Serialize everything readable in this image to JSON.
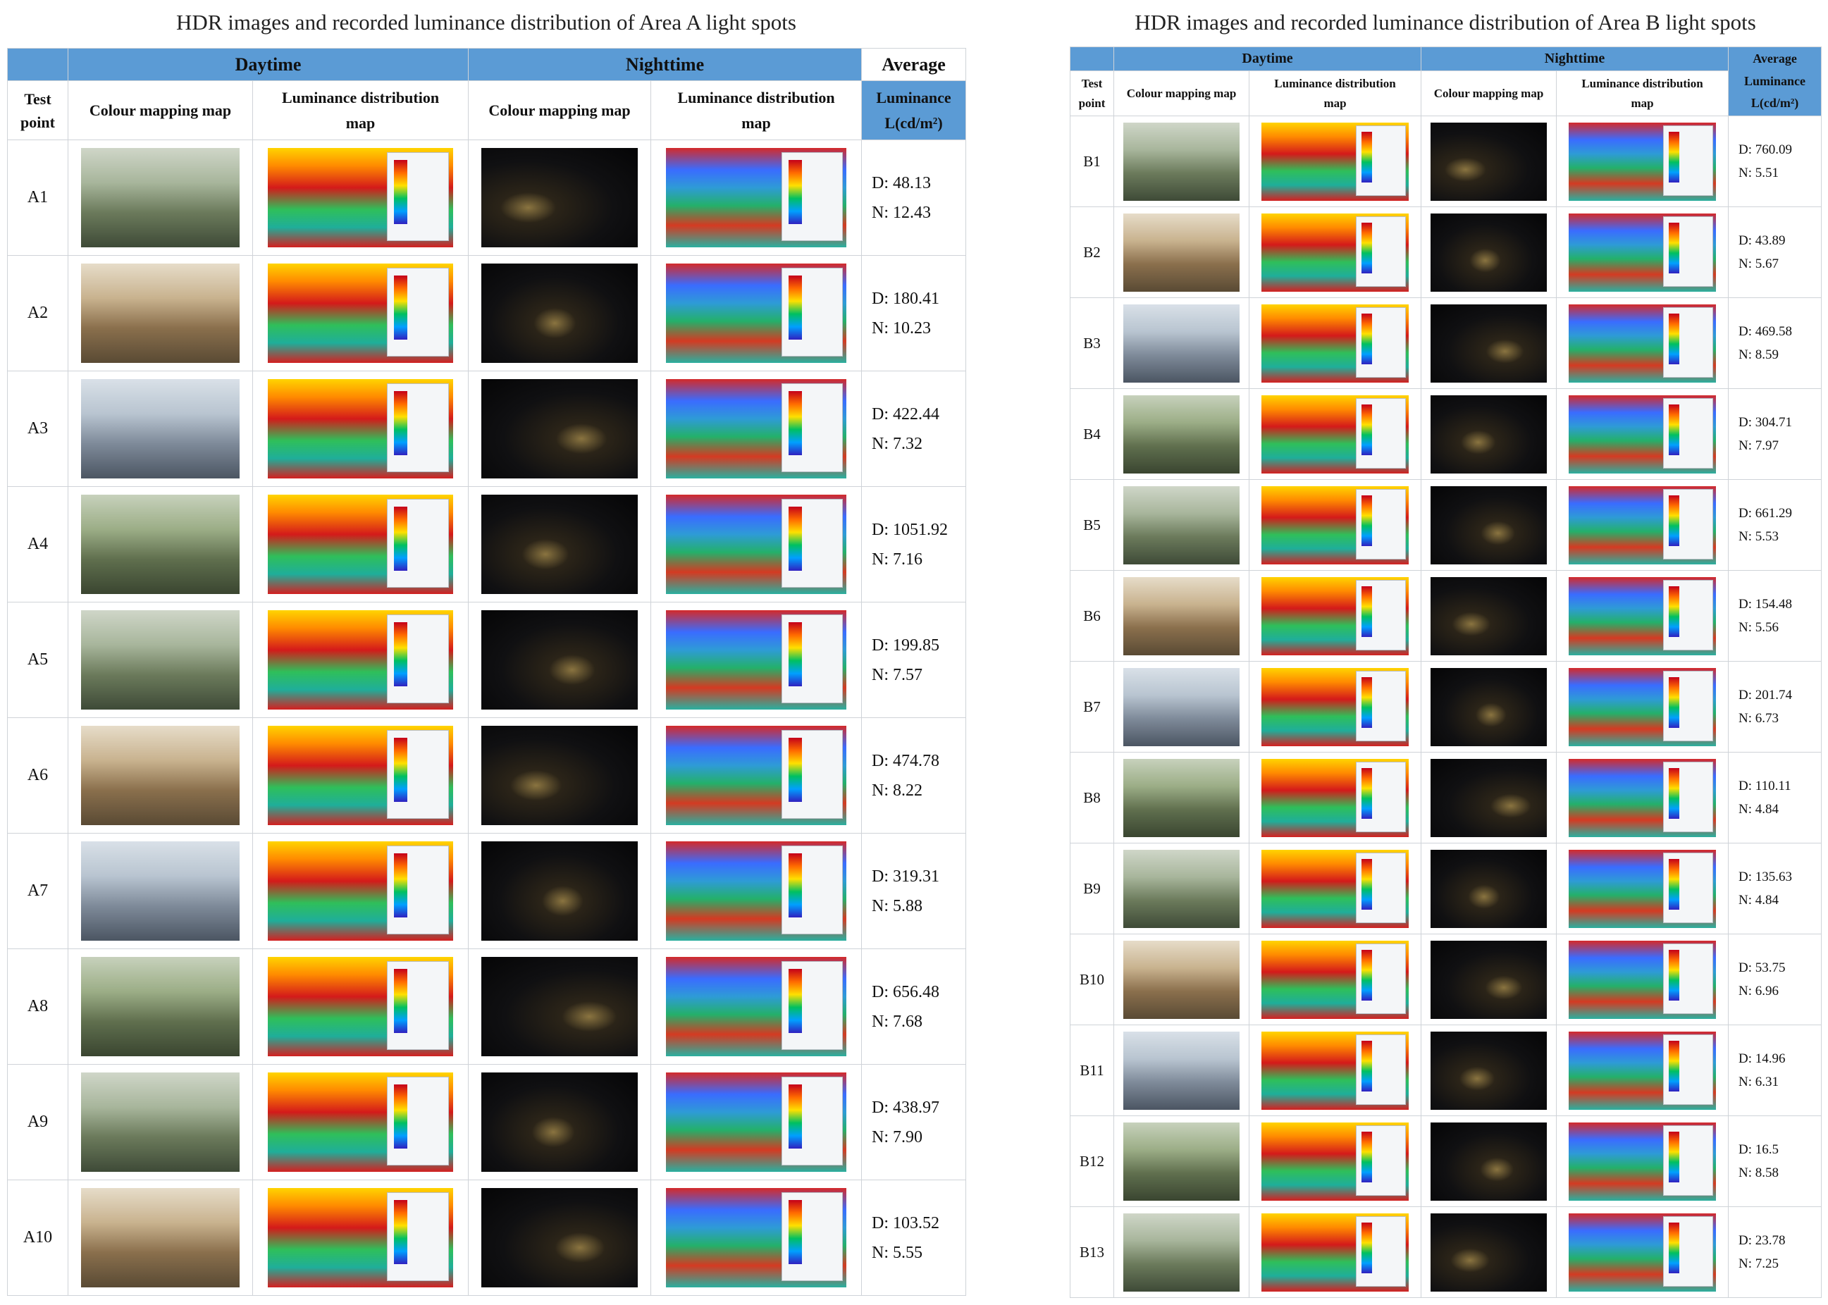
{
  "panels": [
    {
      "title": "HDR images and recorded luminance distribution of Area A light spots",
      "headers": {
        "daytime": "Daytime",
        "nighttime": "Nighttime",
        "average": "Average",
        "luminance": "Luminance",
        "unit": "L(cd/m²)",
        "test_point": "Test point",
        "colour_map": "Colour mapping map",
        "lum_map": "Luminance distribution map"
      },
      "rows": [
        {
          "point": "A1",
          "day": "D: 48.13",
          "night": "N: 12.43"
        },
        {
          "point": "A2",
          "day": "D: 180.41",
          "night": "N: 10.23"
        },
        {
          "point": "A3",
          "day": "D: 422.44",
          "night": "N: 7.32"
        },
        {
          "point": "A4",
          "day": "D: 1051.92",
          "night": "N: 7.16"
        },
        {
          "point": "A5",
          "day": "D: 199.85",
          "night": "N: 7.57"
        },
        {
          "point": "A6",
          "day": "D: 474.78",
          "night": "N: 8.22"
        },
        {
          "point": "A7",
          "day": "D: 319.31",
          "night": "N: 5.88"
        },
        {
          "point": "A8",
          "day": "D: 656.48",
          "night": "N: 7.68"
        },
        {
          "point": "A9",
          "day": "D: 438.97",
          "night": "N: 7.90"
        },
        {
          "point": "A10",
          "day": "D: 103.52",
          "night": "N: 5.55"
        }
      ]
    },
    {
      "title": "HDR images and recorded luminance distribution of Area B light spots",
      "headers": {
        "daytime": "Daytime",
        "nighttime": "Nighttime",
        "average": "Average",
        "luminance": "Luminance",
        "unit": "L(cd/m²)",
        "test_point": "Test point",
        "colour_map": "Colour mapping map",
        "lum_map": "Luminance distribution map"
      },
      "rows": [
        {
          "point": "B1",
          "day": "D: 760.09",
          "night": "N: 5.51"
        },
        {
          "point": "B2",
          "day": "D: 43.89",
          "night": "N: 5.67"
        },
        {
          "point": "B3",
          "day": "D: 469.58",
          "night": "N: 8.59"
        },
        {
          "point": "B4",
          "day": "D: 304.71",
          "night": "N: 7.97"
        },
        {
          "point": "B5",
          "day": "D: 661.29",
          "night": "N: 5.53"
        },
        {
          "point": "B6",
          "day": "D: 154.48",
          "night": "N: 5.56"
        },
        {
          "point": "B7",
          "day": "D: 201.74",
          "night": "N: 6.73"
        },
        {
          "point": "B8",
          "day": "D: 110.11",
          "night": "N: 4.84"
        },
        {
          "point": "B9",
          "day": "D: 135.63",
          "night": "N: 4.84"
        },
        {
          "point": "B10",
          "day": "D: 53.75",
          "night": "N: 6.96"
        },
        {
          "point": "B11",
          "day": "D: 14.96",
          "night": "N: 6.31"
        },
        {
          "point": "B12",
          "day": "D: 16.5",
          "night": "N: 8.58"
        },
        {
          "point": "B13",
          "day": "D: 23.78",
          "night": "N: 7.25"
        }
      ]
    }
  ]
}
